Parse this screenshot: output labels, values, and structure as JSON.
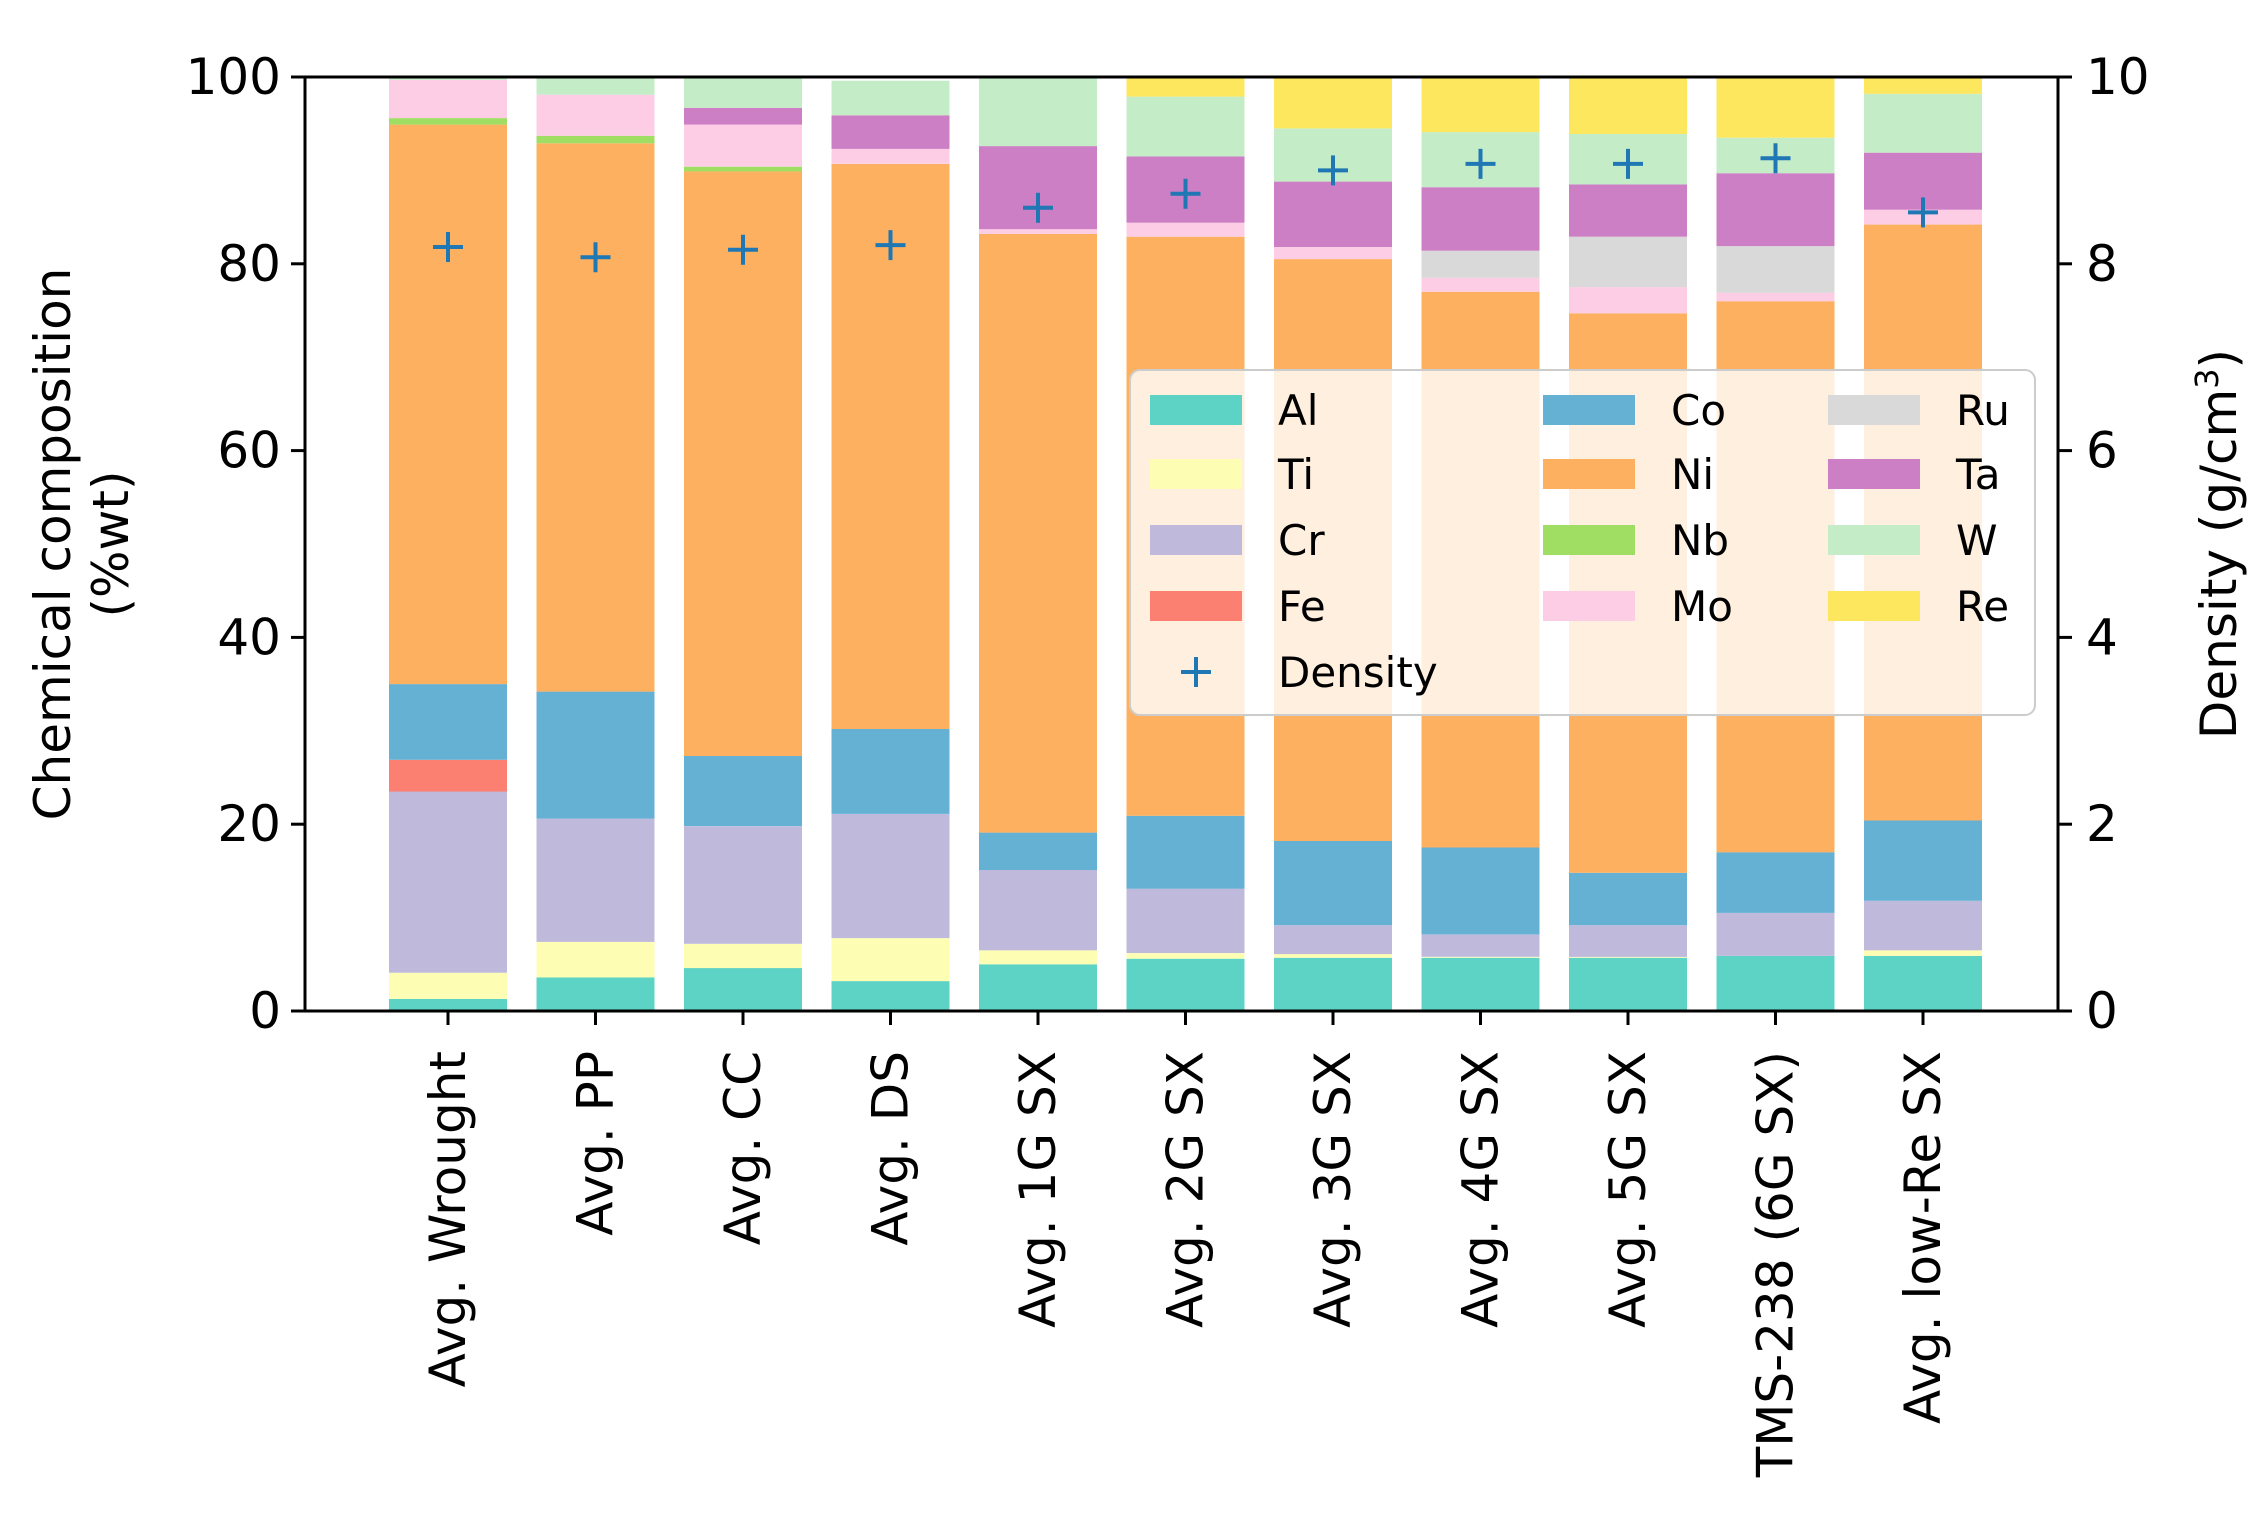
{
  "chart_data": {
    "type": "bar",
    "stacked": true,
    "categories": [
      "Avg. Wrought",
      "Avg. PP",
      "Avg. CC",
      "Avg. DS",
      "Avg. 1G SX",
      "Avg. 2G SX",
      "Avg. 3G SX",
      "Avg. 4G SX",
      "Avg. 5G SX",
      "TMS-238 (6G SX)",
      "Avg. low-Re SX"
    ],
    "ylabel_line1": "Chemical composition",
    "ylabel_line2": "(%wt)",
    "y2label": "Density (g/cm",
    "y2label_sup": "3",
    "y2label_end": ")",
    "ylim": [
      0,
      100
    ],
    "y2lim": [
      0,
      10
    ],
    "yticks": [
      "0",
      "20",
      "40",
      "60",
      "80",
      "100"
    ],
    "y2ticks": [
      "0",
      "2",
      "4",
      "6",
      "8",
      "10"
    ],
    "legend_position": "center-right",
    "series": [
      {
        "name": "Al",
        "color": "#5dd3c5",
        "values": [
          1.3,
          3.6,
          4.6,
          3.2,
          5.0,
          5.6,
          5.7,
          5.7,
          5.7,
          5.9,
          5.9
        ]
      },
      {
        "name": "Ti",
        "color": "#fdfdb4",
        "values": [
          2.8,
          3.8,
          2.6,
          4.6,
          1.5,
          0.6,
          0.4,
          0.1,
          0.1,
          0.0,
          0.6
        ]
      },
      {
        "name": "Cr",
        "color": "#bfbadc",
        "values": [
          19.4,
          13.2,
          12.6,
          13.3,
          8.6,
          6.9,
          3.1,
          2.4,
          3.4,
          4.6,
          5.3
        ]
      },
      {
        "name": "Fe",
        "color": "#fb8072",
        "values": [
          3.4,
          0.0,
          0.0,
          0.0,
          0.0,
          0.0,
          0.0,
          0.0,
          0.0,
          0.0,
          0.0
        ]
      },
      {
        "name": "Co",
        "color": "#64b1d4",
        "values": [
          8.1,
          13.6,
          7.5,
          9.1,
          4.0,
          7.8,
          9.0,
          9.3,
          5.6,
          6.5,
          8.6
        ]
      },
      {
        "name": "Ni",
        "color": "#fdb05f",
        "values": [
          59.9,
          58.7,
          62.6,
          60.5,
          64.1,
          62.0,
          62.3,
          59.5,
          59.9,
          59.0,
          63.8
        ]
      },
      {
        "name": "Nb",
        "color": "#a0de63",
        "values": [
          0.7,
          0.8,
          0.5,
          0.0,
          0.0,
          0.0,
          0.0,
          0.0,
          0.0,
          0.0,
          0.0
        ]
      },
      {
        "name": "Mo",
        "color": "#fdcde5",
        "values": [
          4.1,
          4.4,
          4.5,
          1.6,
          0.5,
          1.5,
          1.3,
          1.5,
          2.8,
          0.9,
          1.6
        ]
      },
      {
        "name": "Ru",
        "color": "#d9d9d9",
        "values": [
          0.0,
          0.0,
          0.0,
          0.0,
          0.0,
          0.0,
          0.0,
          2.9,
          5.4,
          5.0,
          0.0
        ]
      },
      {
        "name": "Ta",
        "color": "#cc7fc4",
        "values": [
          0.0,
          0.0,
          1.8,
          3.6,
          8.9,
          7.1,
          7.0,
          6.8,
          5.6,
          7.8,
          6.1
        ]
      },
      {
        "name": "W",
        "color": "#c4ecc7",
        "values": [
          0.3,
          1.9,
          3.3,
          3.7,
          7.4,
          6.4,
          5.7,
          5.9,
          5.4,
          3.8,
          6.3
        ]
      },
      {
        "name": "Re",
        "color": "#fde75f",
        "values": [
          0.0,
          0.0,
          0.0,
          0.0,
          0.0,
          2.1,
          5.5,
          5.9,
          6.1,
          6.5,
          1.8
        ]
      }
    ],
    "density": {
      "name": "Density",
      "color": "#1f77b4",
      "values": [
        8.18,
        8.07,
        8.15,
        8.2,
        8.6,
        8.75,
        9.0,
        9.07,
        9.07,
        9.13,
        8.55
      ]
    }
  }
}
